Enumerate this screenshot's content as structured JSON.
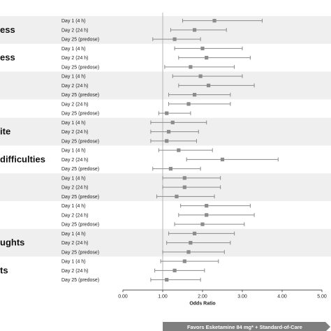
{
  "chart_data": {
    "type": "forest",
    "xlabel": "Odds Ratio",
    "xlim": [
      0,
      5
    ],
    "xticks": [
      "0.00",
      "1.00",
      "2.00",
      "3.00",
      "4.00",
      "5.00"
    ],
    "reference_line": 1.0,
    "favors_label": "Favors Esketamine 84 mg* + Standard-of-Care",
    "groups": [
      {
        "label": "ess",
        "shaded": true,
        "rows": [
          {
            "day": "Day 1 (4 h)",
            "or": 2.3,
            "lo": 1.5,
            "hi": 3.5
          },
          {
            "day": "Day 2 (24 h)",
            "or": 1.8,
            "lo": 1.2,
            "hi": 2.6
          },
          {
            "day": "Day 25 (predose)",
            "or": 1.3,
            "lo": 0.75,
            "hi": 1.95
          }
        ]
      },
      {
        "label": "ess",
        "shaded": false,
        "rows": [
          {
            "day": "Day 1 (4 h)",
            "or": 2.0,
            "lo": 1.3,
            "hi": 3.0
          },
          {
            "day": "Day 2 (24 h)",
            "or": 2.1,
            "lo": 1.4,
            "hi": 3.2
          },
          {
            "day": "Day 25 (predose)",
            "or": 1.7,
            "lo": 1.05,
            "hi": 2.8
          }
        ]
      },
      {
        "label": "",
        "shaded": true,
        "rows": [
          {
            "day": "Day 1 (4 h)",
            "or": 1.95,
            "lo": 1.25,
            "hi": 3.0
          },
          {
            "day": "Day 2 (24 h)",
            "or": 2.15,
            "lo": 1.4,
            "hi": 3.3
          },
          {
            "day": "Day 25 (predose)",
            "or": 1.8,
            "lo": 1.15,
            "hi": 2.7
          }
        ]
      },
      {
        "label": "",
        "shaded": false,
        "rows": [
          {
            "day": "Day 2 (24 h)",
            "or": 1.65,
            "lo": 1.15,
            "hi": 2.7
          },
          {
            "day": "Day 25 (predose)",
            "or": 1.1,
            "lo": 0.9,
            "hi": 1.7
          }
        ]
      },
      {
        "label": "ite",
        "shaded": true,
        "rows": [
          {
            "day": "Day 1 (4 h)",
            "or": 1.25,
            "lo": 0.7,
            "hi": 2.1
          },
          {
            "day": "Day 2 (24 h)",
            "or": 1.15,
            "lo": 0.7,
            "hi": 1.9
          },
          {
            "day": "Day 25 (predose)",
            "or": 1.1,
            "lo": 0.7,
            "hi": 1.85
          }
        ]
      },
      {
        "label": "difficulties",
        "shaded": false,
        "rows": [
          {
            "day": "Day 1 (4 h)",
            "or": 1.4,
            "lo": 0.9,
            "hi": 2.25
          },
          {
            "day": "Day 2 (24 h)",
            "or": 2.5,
            "lo": 1.6,
            "hi": 3.9
          },
          {
            "day": "Day 25 (predose)",
            "or": 1.2,
            "lo": 0.75,
            "hi": 1.95
          }
        ]
      },
      {
        "label": "",
        "shaded": true,
        "rows": [
          {
            "day": "Day 1 (4 h)",
            "or": 1.55,
            "lo": 1.0,
            "hi": 2.45
          },
          {
            "day": "Day 2 (24 h)",
            "or": 1.55,
            "lo": 1.0,
            "hi": 2.45
          },
          {
            "day": "Day 25 (predose)",
            "or": 1.35,
            "lo": 0.85,
            "hi": 2.3
          }
        ]
      },
      {
        "label": "",
        "shaded": false,
        "rows": [
          {
            "day": "Day 1 (4 h)",
            "or": 2.1,
            "lo": 1.45,
            "hi": 3.2
          },
          {
            "day": "Day 2 (24 h)",
            "or": 2.1,
            "lo": 1.4,
            "hi": 3.3
          },
          {
            "day": "Day 25 (predose)",
            "or": 2.0,
            "lo": 1.3,
            "hi": 3.05
          }
        ]
      },
      {
        "label": "ughts",
        "shaded": true,
        "rows": [
          {
            "day": "Day 1 (4 h)",
            "or": 1.8,
            "lo": 1.15,
            "hi": 2.8
          },
          {
            "day": "Day 2 (24 h)",
            "or": 1.7,
            "lo": 1.1,
            "hi": 2.7
          },
          {
            "day": "Day 25 (predose)",
            "or": 1.65,
            "lo": 1.0,
            "hi": 2.55
          }
        ]
      },
      {
        "label": "ts",
        "shaded": false,
        "rows": [
          {
            "day": "Day 1 (4 h)",
            "or": 1.55,
            "lo": 0.95,
            "hi": 2.4
          },
          {
            "day": "Day 2 (24 h)",
            "or": 1.3,
            "lo": 0.8,
            "hi": 2.05
          },
          {
            "day": "Day 25 (predose)",
            "or": 1.1,
            "lo": 0.7,
            "hi": 1.95
          }
        ]
      }
    ]
  }
}
